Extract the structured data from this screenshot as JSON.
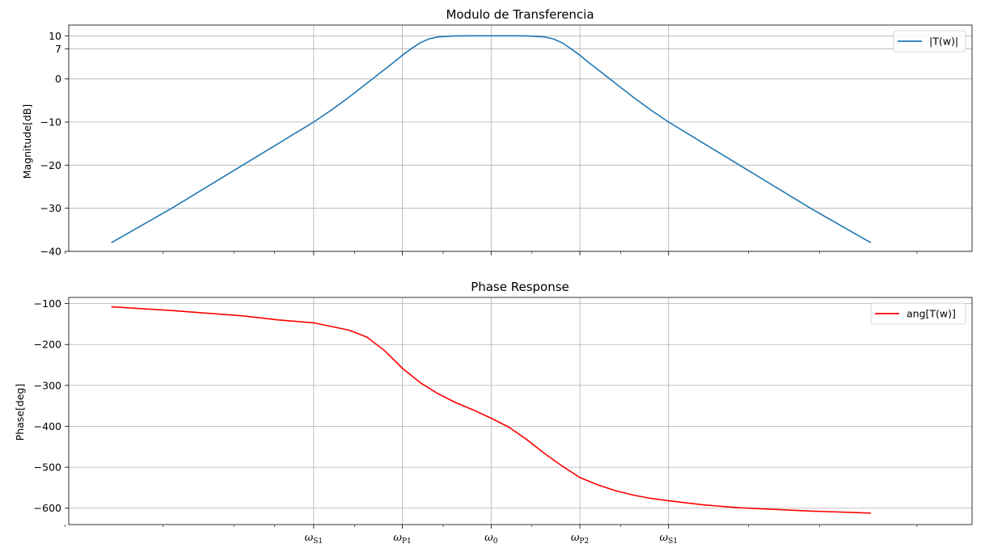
{
  "chart_data": [
    {
      "type": "line",
      "title": "Modulo de Transferencia",
      "ylabel": "Magnitude[dB]",
      "xlabel": "",
      "ylim": [
        -40,
        12.5
      ],
      "yticks": [
        10,
        7,
        0,
        -10,
        -20,
        -30,
        -40
      ],
      "yticklabels": [
        "10",
        "7",
        "0",
        "−10",
        "−20",
        "−30",
        "−40"
      ],
      "grid": true,
      "legend_position": "top-right",
      "series": [
        {
          "name": "|T(w)|",
          "color": "#1f77b4",
          "x": [
            -2.14,
            -1.8,
            -1.4,
            -1.2,
            -1.1,
            -1.0,
            -0.9,
            -0.8,
            -0.7,
            -0.6,
            -0.55,
            -0.5,
            -0.45,
            -0.4,
            -0.35,
            -0.3,
            -0.2,
            -0.1,
            0,
            0.1,
            0.2,
            0.3,
            0.35,
            0.4,
            0.45,
            0.5,
            0.55,
            0.6,
            0.7,
            0.8,
            0.9,
            1.0,
            1.1,
            1.2,
            1.4,
            1.8,
            2.14
          ],
          "values": [
            -38,
            -30,
            -20,
            -15,
            -12.5,
            -10,
            -7.2,
            -4.2,
            -1.0,
            2.2,
            3.8,
            5.5,
            7.0,
            8.4,
            9.3,
            9.75,
            9.98,
            10,
            10,
            10,
            9.98,
            9.75,
            9.3,
            8.4,
            7.0,
            5.5,
            3.8,
            2.2,
            -1.0,
            -4.2,
            -7.2,
            -10,
            -12.5,
            -15,
            -20,
            -30,
            -38
          ]
        }
      ]
    },
    {
      "type": "line",
      "title": "Phase Response",
      "ylabel": "Phase[deg]",
      "xlabel": "",
      "ylim": [
        -640,
        -85
      ],
      "yticks": [
        -100,
        -200,
        -300,
        -400,
        -500,
        -600
      ],
      "yticklabels": [
        "−100",
        "−200",
        "−300",
        "−400",
        "−500",
        "−600"
      ],
      "grid": true,
      "legend_position": "top-right",
      "series": [
        {
          "name": "ang[T(w)]",
          "color": "#ff0000",
          "x": [
            -2.14,
            -1.8,
            -1.4,
            -1.2,
            -1.0,
            -0.8,
            -0.7,
            -0.6,
            -0.5,
            -0.4,
            -0.3,
            -0.2,
            -0.1,
            0,
            0.1,
            0.2,
            0.3,
            0.4,
            0.5,
            0.6,
            0.7,
            0.8,
            0.9,
            1.0,
            1.2,
            1.4,
            1.8,
            2.14
          ],
          "values": [
            -108,
            -117,
            -130,
            -140,
            -147,
            -165,
            -182,
            -215,
            -258,
            -293,
            -320,
            -342,
            -360,
            -380,
            -402,
            -432,
            -466,
            -497,
            -525,
            -543,
            -557,
            -568,
            -576,
            -582,
            -592,
            -599,
            -607,
            -612
          ]
        }
      ]
    }
  ],
  "xaxis": {
    "ticks": [
      {
        "x": -1.0,
        "base": "ω",
        "sub": "S1"
      },
      {
        "x": -0.5,
        "base": "ω",
        "sub": "P1"
      },
      {
        "x": 0.0,
        "base": "ω",
        "sub": "0"
      },
      {
        "x": 0.5,
        "base": "ω",
        "sub": "P2"
      },
      {
        "x": 1.0,
        "base": "ω",
        "sub": "S1"
      }
    ],
    "minor_ticks": [
      -2.4,
      -1.85,
      -1.45,
      -1.22,
      -0.77,
      -0.27,
      0.23,
      0.73,
      1.45,
      1.85,
      2.4
    ],
    "xlim": [
      -2.38,
      2.71
    ]
  },
  "colors": {
    "grid": "#b0b0b0",
    "axis": "#000000"
  }
}
